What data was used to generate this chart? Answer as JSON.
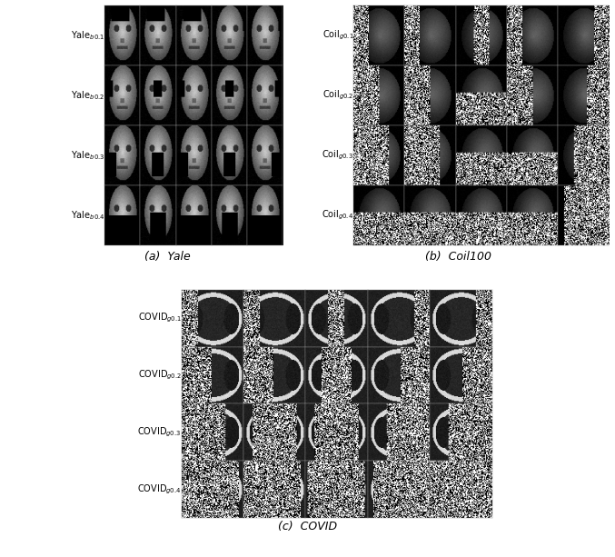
{
  "panel_a_label": "(a)  Yale",
  "panel_b_label": "(b)  Coil100",
  "panel_c_label": "(c)  COVID",
  "yale_row_labels": [
    "Yale$_{b0.1}$",
    "Yale$_{b0.2}$",
    "Yale$_{b0.3}$",
    "Yale$_{b0.4}$"
  ],
  "coil_row_labels": [
    "Coil$_{g0.1}$",
    "Coil$_{g0.2}$",
    "Coil$_{g0.3}$",
    "Coil$_{g0.4}$"
  ],
  "covid_row_labels": [
    "COVID$_{g0.1}$",
    "COVID$_{g0.2}$",
    "COVID$_{g0.3}$",
    "COVID$_{g0.4}$"
  ],
  "rows": 4,
  "cols": 5,
  "background_color": "#ffffff",
  "label_fontsize": 7,
  "caption_fontsize": 9
}
